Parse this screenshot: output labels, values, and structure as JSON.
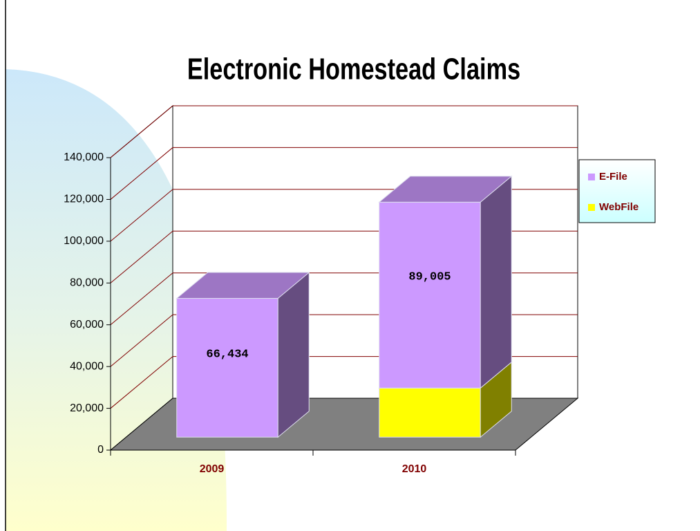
{
  "chart_data": {
    "type": "bar3d_stacked",
    "title": "Electronic Homestead Claims",
    "categories": [
      "2009",
      "2010"
    ],
    "series": [
      {
        "name": "WebFile",
        "color": "#ffff00",
        "values": [
          0,
          23500
        ]
      },
      {
        "name": "E-File",
        "color": "#cc99ff",
        "values": [
          66434,
          89005
        ],
        "value_labels": [
          "66,434",
          "89,005"
        ]
      }
    ],
    "ylim": [
      0,
      140000
    ],
    "yticks": [
      0,
      {
        "value": 20000,
        "label": "20,000"
      },
      {
        "value": 40000,
        "label": "40,000"
      },
      {
        "value": 60000,
        "label": "60,000"
      },
      {
        "value": 80000,
        "label": "80,000"
      },
      {
        "value": 100000,
        "label": "100,000"
      },
      {
        "value": 120000,
        "label": "120,000"
      },
      {
        "value": 140000,
        "label": "140,000"
      }
    ],
    "grid": true,
    "legend": "right"
  }
}
